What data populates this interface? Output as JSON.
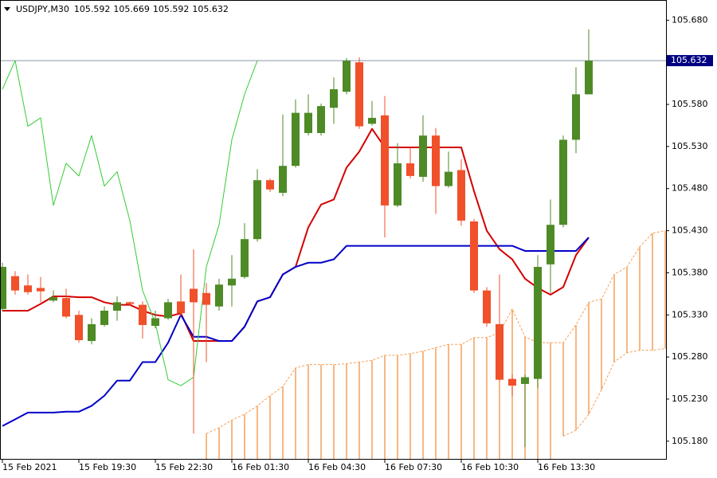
{
  "chart_data": {
    "type": "candlestick",
    "title": "USDJPY,M30",
    "categories": [
      "15 Feb 2021",
      null,
      null,
      null,
      null,
      null,
      "15 Feb 19:30",
      null,
      null,
      null,
      null,
      null,
      "15 Feb 22:30",
      null,
      null,
      null,
      null,
      null,
      "16 Feb 01:30",
      null,
      null,
      null,
      null,
      null,
      "16 Feb 04:30",
      null,
      null,
      null,
      null,
      null,
      "16 Feb 07:30",
      null,
      null,
      null,
      null,
      null,
      "16 Feb 10:30",
      null,
      null,
      null,
      null,
      null,
      "16 Feb 13:30",
      null,
      null,
      null,
      null,
      null,
      null,
      null,
      null,
      null,
      null
    ],
    "open": [
      105.337,
      105.376,
      105.365,
      105.362,
      105.347,
      105.35,
      105.33,
      105.299,
      105.318,
      105.335,
      105.345,
      105.342,
      105.317,
      105.326,
      105.346,
      105.361,
      105.356,
      105.34,
      105.365,
      105.375,
      105.42,
      105.49,
      105.475,
      105.507,
      105.546,
      105.546,
      105.576,
      105.595,
      105.63,
      105.557,
      105.567,
      105.46,
      105.51,
      105.494,
      105.543,
      105.483,
      105.502,
      105.441,
      105.359,
      105.319,
      105.254,
      105.248,
      105.254,
      105.39,
      105.437,
      105.538,
      105.592,
      null,
      null,
      null,
      null,
      null,
      null
    ],
    "high": [
      105.392,
      105.382,
      105.378,
      105.375,
      105.359,
      105.361,
      105.335,
      105.326,
      105.34,
      105.352,
      105.346,
      105.346,
      105.335,
      105.349,
      105.378,
      105.408,
      105.368,
      105.373,
      105.401,
      105.439,
      105.503,
      105.492,
      105.568,
      105.586,
      105.592,
      105.581,
      105.612,
      105.635,
      105.636,
      105.584,
      105.59,
      105.534,
      105.529,
      105.567,
      105.552,
      105.524,
      105.515,
      105.444,
      105.363,
      105.378,
      105.259,
      105.259,
      105.401,
      105.467,
      105.543,
      105.624,
      105.669,
      null,
      null,
      null,
      null,
      null,
      null
    ],
    "low": [
      105.335,
      105.354,
      105.354,
      105.345,
      105.345,
      105.326,
      105.297,
      105.295,
      105.316,
      105.323,
      105.341,
      105.302,
      105.314,
      105.324,
      105.328,
      105.189,
      105.274,
      105.335,
      105.34,
      105.373,
      105.417,
      105.476,
      105.471,
      105.505,
      105.543,
      105.543,
      105.557,
      105.592,
      105.551,
      105.555,
      105.422,
      105.458,
      105.492,
      105.488,
      105.45,
      105.481,
      105.436,
      105.356,
      105.316,
      105.252,
      105.234,
      105.173,
      105.243,
      105.356,
      105.434,
      105.522,
      105.592,
      null,
      null,
      null,
      null,
      null,
      null
    ],
    "close": [
      105.387,
      105.359,
      105.357,
      105.358,
      105.351,
      105.328,
      105.3,
      105.319,
      105.335,
      105.345,
      105.343,
      105.318,
      105.326,
      105.345,
      105.332,
      105.345,
      105.342,
      105.366,
      105.373,
      105.42,
      105.49,
      105.479,
      105.507,
      105.57,
      105.57,
      105.578,
      105.598,
      105.632,
      105.554,
      105.564,
      105.46,
      105.51,
      105.495,
      105.543,
      105.483,
      105.5,
      105.442,
      105.359,
      105.32,
      105.253,
      105.246,
      105.256,
      105.387,
      105.437,
      105.538,
      105.592,
      105.632,
      null,
      null,
      null,
      null,
      null,
      null
    ],
    "up_color": "#4e8a26",
    "down_color": "#f0502a",
    "lines": [
      {
        "color": "#d40000",
        "values": [
          105.335,
          105.335,
          105.335,
          105.343,
          105.352,
          105.352,
          105.351,
          105.351,
          105.345,
          105.342,
          105.342,
          105.335,
          105.33,
          105.328,
          105.332,
          105.299,
          105.299,
          105.299,
          105.299,
          105.316,
          105.346,
          105.351,
          105.378,
          105.387,
          105.434,
          105.461,
          105.467,
          105.505,
          105.524,
          105.551,
          105.529,
          105.529,
          105.529,
          105.529,
          105.529,
          105.529,
          105.529,
          105.477,
          105.43,
          105.408,
          105.396,
          105.373,
          105.362,
          105.354,
          105.363,
          105.401,
          105.422,
          null,
          null,
          null,
          null,
          null,
          null
        ]
      },
      {
        "color": "#0000c8",
        "values": [
          105.198,
          105.206,
          105.214,
          105.214,
          105.214,
          105.215,
          105.215,
          105.222,
          105.234,
          105.252,
          105.252,
          105.274,
          105.274,
          105.297,
          105.33,
          105.304,
          105.304,
          105.299,
          105.299,
          105.316,
          105.346,
          105.351,
          105.378,
          105.387,
          105.392,
          105.392,
          105.396,
          105.412,
          105.412,
          105.412,
          105.412,
          105.412,
          105.412,
          105.412,
          105.412,
          105.412,
          105.412,
          105.412,
          105.412,
          105.412,
          105.412,
          105.406,
          105.406,
          105.406,
          105.406,
          105.406,
          105.422,
          null,
          null,
          null,
          null,
          null,
          null
        ]
      },
      {
        "color": "#33cc33",
        "values": [
          105.598,
          105.632,
          105.554,
          105.564,
          105.46,
          105.51,
          105.495,
          105.543,
          105.483,
          105.5,
          105.442,
          105.359,
          105.32,
          105.253,
          105.246,
          105.256,
          105.387,
          105.437,
          105.538,
          105.592,
          105.632,
          null,
          null,
          null,
          null,
          null,
          null,
          null,
          null,
          null,
          null,
          null,
          null,
          null,
          null,
          null,
          null,
          null,
          null,
          null,
          null,
          null,
          null,
          null,
          null,
          null,
          null,
          null,
          null,
          null,
          null,
          null,
          null
        ]
      }
    ],
    "cloud": {
      "color": "#f5a05a",
      "upper": [
        null,
        null,
        null,
        null,
        null,
        null,
        null,
        null,
        null,
        null,
        null,
        null,
        null,
        null,
        null,
        null,
        105.189,
        105.196,
        105.205,
        105.212,
        105.222,
        105.234,
        105.245,
        105.267,
        105.271,
        105.271,
        105.271,
        105.272,
        105.274,
        105.276,
        105.282,
        105.282,
        105.284,
        105.287,
        105.291,
        105.295,
        105.295,
        105.303,
        105.303,
        105.309,
        105.337,
        105.304,
        105.297,
        105.297,
        105.297,
        105.318,
        105.345,
        105.349,
        105.378,
        105.387,
        105.411,
        105.427,
        105.43
      ],
      "lower": [
        null,
        null,
        null,
        null,
        null,
        null,
        null,
        null,
        null,
        null,
        null,
        null,
        null,
        null,
        null,
        null,
        null,
        null,
        null,
        null,
        null,
        null,
        null,
        null,
        null,
        null,
        null,
        null,
        null,
        null,
        null,
        null,
        null,
        null,
        null,
        null,
        null,
        null,
        null,
        null,
        null,
        null,
        null,
        null,
        105.186,
        105.193,
        105.212,
        105.241,
        105.274,
        105.285,
        105.288,
        105.288,
        105.29
      ]
    },
    "ylim": [
      105.159,
      105.704
    ],
    "yticks": [
      {
        "value": 105.18,
        "label": "105.180"
      },
      {
        "value": 105.23,
        "label": "105.230"
      },
      {
        "value": 105.28,
        "label": "105.280"
      },
      {
        "value": 105.33,
        "label": "105.330"
      },
      {
        "value": 105.38,
        "label": "105.380"
      },
      {
        "value": 105.43,
        "label": "105.430"
      },
      {
        "value": 105.48,
        "label": "105.480"
      },
      {
        "value": 105.53,
        "label": "105.530"
      },
      {
        "value": 105.58,
        "label": "105.580"
      },
      {
        "value": 105.68,
        "label": "105.680"
      }
    ],
    "price_line_color": "#8898a8",
    "price_label_color": "#000080"
  }
}
